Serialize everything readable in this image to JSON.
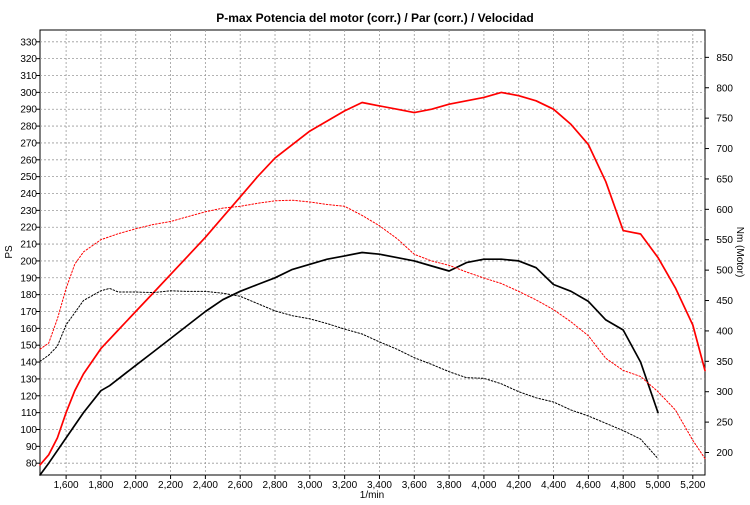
{
  "chart_data": {
    "type": "line",
    "title": "P-max Potencia del motor (corr.) / Par (corr.) / Velocidad",
    "xlabel": "1/min",
    "ylabel_left": "PS",
    "ylabel_right": "Nm (Motor)",
    "xlim": [
      1450,
      5270
    ],
    "ylim_left": [
      73,
      337
    ],
    "ylim_right": [
      163,
      895
    ],
    "x_ticks": [
      "1,600",
      "1,800",
      "2,000",
      "2,200",
      "2,400",
      "2,600",
      "2,800",
      "3,000",
      "3,200",
      "3,400",
      "3,600",
      "3,800",
      "4,000",
      "4,200",
      "4,400",
      "4,600",
      "4,800",
      "5,000",
      "5,200"
    ],
    "y_left_ticks": [
      "80",
      "90",
      "100",
      "110",
      "120",
      "130",
      "140",
      "150",
      "160",
      "170",
      "180",
      "190",
      "200",
      "210",
      "220",
      "230",
      "240",
      "250",
      "260",
      "270",
      "280",
      "290",
      "300",
      "310",
      "320",
      "330"
    ],
    "y_right_ticks": [
      "200",
      "250",
      "300",
      "350",
      "400",
      "450",
      "500",
      "550",
      "600",
      "650",
      "700",
      "750",
      "800",
      "850"
    ],
    "grid": true,
    "colors": {
      "power": "#ff0000",
      "torque": "#000000"
    },
    "series": [
      {
        "axis": "left",
        "color": "#ff0000",
        "style": "solid",
        "x": [
          1450,
          1500,
          1550,
          1600,
          1650,
          1700,
          1800,
          1900,
          2000,
          2100,
          2200,
          2300,
          2400,
          2500,
          2600,
          2700,
          2800,
          2900,
          3000,
          3100,
          3200,
          3300,
          3400,
          3500,
          3600,
          3700,
          3800,
          3900,
          4000,
          4100,
          4200,
          4300,
          4400,
          4500,
          4600,
          4700,
          4800,
          4900,
          5000,
          5100,
          5200,
          5270
        ],
        "values": [
          79,
          85,
          95,
          110,
          123,
          133,
          148,
          159,
          170,
          181,
          192,
          203,
          214,
          226,
          238,
          250,
          261,
          269,
          277,
          283,
          289,
          294,
          292,
          290,
          288,
          290,
          293,
          295,
          297,
          300,
          298,
          295,
          290,
          281,
          269,
          247,
          218,
          216,
          202,
          184,
          162,
          135
        ]
      },
      {
        "axis": "left",
        "color": "#000000",
        "style": "solid",
        "x": [
          1450,
          1500,
          1600,
          1700,
          1800,
          1850,
          1900,
          2000,
          2100,
          2200,
          2300,
          2400,
          2500,
          2600,
          2700,
          2800,
          2900,
          3000,
          3100,
          3200,
          3300,
          3400,
          3500,
          3600,
          3700,
          3800,
          3900,
          4000,
          4100,
          4200,
          4300,
          4400,
          4500,
          4600,
          4700,
          4800,
          4900,
          5000
        ],
        "values": [
          73,
          80,
          95,
          110,
          123,
          126,
          130,
          138,
          146,
          154,
          162,
          170,
          177,
          182,
          186,
          190,
          195,
          198,
          201,
          203,
          205,
          204,
          202,
          200,
          197,
          194,
          199,
          201,
          201,
          200,
          196,
          186,
          182,
          176,
          165,
          159,
          140,
          110
        ]
      },
      {
        "axis": "right",
        "color": "#ff0000",
        "style": "dotted",
        "x": [
          1450,
          1500,
          1550,
          1600,
          1650,
          1700,
          1800,
          1900,
          2000,
          2100,
          2200,
          2300,
          2400,
          2500,
          2600,
          2700,
          2800,
          2900,
          3000,
          3100,
          3200,
          3300,
          3400,
          3500,
          3600,
          3700,
          3800,
          3900,
          4000,
          4100,
          4200,
          4300,
          4400,
          4500,
          4600,
          4700,
          4800,
          4900,
          5000,
          5100,
          5200,
          5270
        ],
        "values": [
          370,
          380,
          420,
          470,
          510,
          530,
          550,
          560,
          568,
          575,
          580,
          588,
          596,
          602,
          605,
          610,
          614,
          615,
          612,
          608,
          605,
          590,
          573,
          552,
          526,
          515,
          508,
          497,
          487,
          478,
          465,
          451,
          435,
          415,
          392,
          355,
          335,
          325,
          300,
          270,
          220,
          190
        ]
      },
      {
        "axis": "right",
        "color": "#000000",
        "style": "dotted",
        "x": [
          1450,
          1500,
          1550,
          1600,
          1650,
          1700,
          1800,
          1850,
          1900,
          2000,
          2100,
          2200,
          2300,
          2400,
          2500,
          2600,
          2700,
          2800,
          2900,
          3000,
          3100,
          3200,
          3300,
          3400,
          3500,
          3600,
          3700,
          3800,
          3900,
          4000,
          4100,
          4200,
          4300,
          4400,
          4500,
          4600,
          4700,
          4800,
          4900,
          5000
        ],
        "values": [
          350,
          360,
          375,
          410,
          430,
          450,
          466,
          470,
          464,
          464,
          463,
          466,
          465,
          465,
          462,
          457,
          445,
          433,
          425,
          420,
          412,
          403,
          395,
          382,
          370,
          356,
          345,
          333,
          323,
          322,
          313,
          300,
          290,
          283,
          270,
          260,
          248,
          236,
          222,
          190
        ]
      }
    ]
  }
}
